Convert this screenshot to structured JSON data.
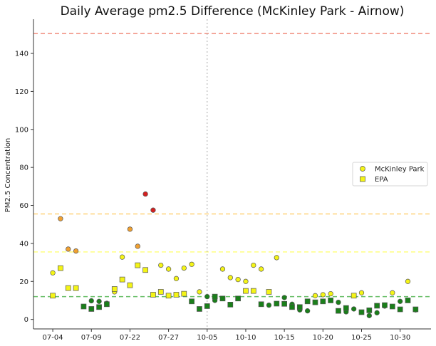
{
  "chart_data": {
    "type": "scatter",
    "title": "Daily Average pm2.5 Difference (McKinley Park - Airnow)",
    "xlabel": "",
    "ylabel": "PM2.5 Concentration",
    "ylim": [
      -5,
      158
    ],
    "yticks": [
      0,
      20,
      40,
      60,
      80,
      100,
      120,
      140
    ],
    "xticks": [
      {
        "index": 0,
        "label": "07-04"
      },
      {
        "index": 5,
        "label": "07-09"
      },
      {
        "index": 10,
        "label": "07-22"
      },
      {
        "index": 15,
        "label": "07-27"
      },
      {
        "index": 20,
        "label": "10-05"
      },
      {
        "index": 25,
        "label": "10-10"
      },
      {
        "index": 30,
        "label": "10-15"
      },
      {
        "index": 35,
        "label": "10-20"
      },
      {
        "index": 40,
        "label": "10-25"
      },
      {
        "index": 45,
        "label": "10-30"
      }
    ],
    "xrange": [
      -2.5,
      49
    ],
    "vertical_line_index": 20,
    "reference_lines": [
      {
        "y": 150.5,
        "color": "#f08a7a"
      },
      {
        "y": 55.5,
        "color": "#ffd27a"
      },
      {
        "y": 35.5,
        "color": "#ffff80"
      },
      {
        "y": 12.0,
        "color": "#6abf69"
      }
    ],
    "legend_position": "center-right",
    "colors": {
      "good": "#1a7f1a",
      "moderate": "#f4f416",
      "usg": "#f0a030",
      "unhealthy": "#d42020"
    },
    "series": [
      {
        "name": "McKinley Park",
        "marker": "circle",
        "values": [
          24.5,
          53,
          37,
          36,
          null,
          9.8,
          9.5,
          8.5,
          14.5,
          32.8,
          47.5,
          38.5,
          66,
          57.5,
          28.5,
          26.5,
          21.5,
          27,
          29,
          14.5,
          12,
          10,
          26.5,
          22,
          21,
          20,
          28.5,
          26.5,
          7.5,
          32.5,
          11.5,
          8,
          5,
          4.5,
          12.5,
          13,
          13.5,
          9,
          4,
          5.5,
          14,
          2,
          3.5,
          7,
          14,
          9.5,
          20,
          5
        ]
      },
      {
        "name": "EPA",
        "marker": "square",
        "values": [
          12.5,
          27,
          16.5,
          16.5,
          6.8,
          5.5,
          6.5,
          8,
          16,
          21,
          18,
          28.5,
          26,
          13,
          14.5,
          12.5,
          13,
          13.5,
          9.5,
          5.5,
          7,
          12,
          11,
          7.8,
          11,
          15,
          15,
          8,
          14.5,
          8.3,
          8.2,
          6.5,
          6.5,
          9.5,
          9,
          9.5,
          10,
          4.5,
          6,
          12.5,
          3.8,
          4.8,
          7.2,
          7.5,
          6.8,
          5.3,
          10,
          5.3
        ]
      }
    ]
  }
}
